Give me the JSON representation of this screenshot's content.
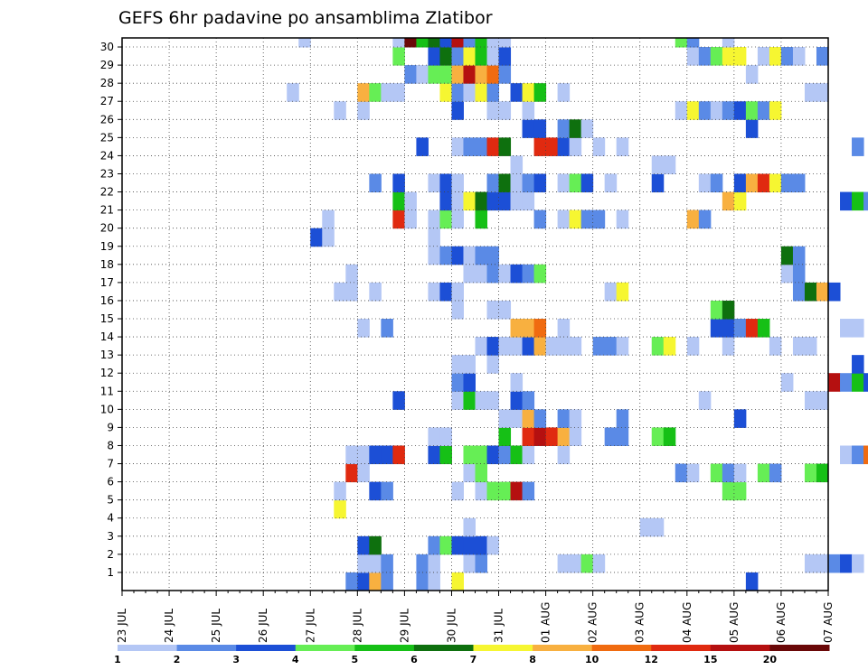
{
  "colors": {
    "c1": "#b4c7f5",
    "c2": "#5a8ae6",
    "c3": "#1c4fd6",
    "c4": "#66ee55",
    "c5": "#16c016",
    "c6": "#0e700e",
    "c7": "#f6f631",
    "c8": "#f8b040",
    "c9": "#f06b10",
    "c10": "#e02a10",
    "c11": "#b51010",
    "c12": "#6a0808"
  },
  "chart_data": {
    "type": "heatmap",
    "title": "GEFS 6hr padavine po ansamblima Zlatibor",
    "x_tick_labels": [
      "23 JUL",
      "24 JUL",
      "25 JUL",
      "26 JUL",
      "27 JUL",
      "28 JUL",
      "29 JUL",
      "30 JUL",
      "31 JUL",
      "01 AUG",
      "02 AUG",
      "03 AUG",
      "04 AUG",
      "05 AUG",
      "06 AUG",
      "07 AUG"
    ],
    "y_tick_labels": [
      "1",
      "2",
      "3",
      "4",
      "5",
      "6",
      "7",
      "8",
      "9",
      "10",
      "11",
      "12",
      "13",
      "14",
      "15",
      "16",
      "17",
      "18",
      "19",
      "20",
      "21",
      "22",
      "23",
      "24",
      "25",
      "26",
      "27",
      "28",
      "29",
      "30"
    ],
    "x_steps_per_day": 4,
    "y_members": 30,
    "legend": {
      "labels": [
        "1",
        "2",
        "3",
        "4",
        "5",
        "6",
        "7",
        "8",
        "10",
        "12",
        "15",
        "20"
      ],
      "levels": [
        "c1",
        "c2",
        "c3",
        "c4",
        "c5",
        "c6",
        "c7",
        "c8",
        "c9",
        "c10",
        "c11",
        "c12"
      ]
    },
    "cells": {
      "30": [
        [
          15,
          "c1"
        ],
        [
          23,
          "c1"
        ],
        [
          24,
          "c12"
        ],
        [
          25,
          "c5"
        ],
        [
          26,
          "c6"
        ],
        [
          27,
          "c3"
        ],
        [
          28,
          "c11"
        ],
        [
          29,
          "c2"
        ],
        [
          30,
          "c5"
        ],
        [
          31,
          "c1"
        ],
        [
          32,
          "c1"
        ],
        [
          47,
          "c4"
        ],
        [
          48,
          "c2"
        ],
        [
          51,
          "c1"
        ]
      ],
      "29": [
        [
          23,
          "c4"
        ],
        [
          26,
          "c3"
        ],
        [
          27,
          "c6"
        ],
        [
          28,
          "c2"
        ],
        [
          29,
          "c7"
        ],
        [
          30,
          "c5"
        ],
        [
          31,
          "c1"
        ],
        [
          32,
          "c3"
        ],
        [
          48,
          "c1"
        ],
        [
          49,
          "c2"
        ],
        [
          50,
          "c4"
        ],
        [
          51,
          "c7"
        ],
        [
          52,
          "c7"
        ],
        [
          54,
          "c1"
        ],
        [
          55,
          "c7"
        ],
        [
          56,
          "c2"
        ],
        [
          57,
          "c1"
        ],
        [
          59,
          "c2"
        ]
      ],
      "28": [
        [
          24,
          "c2"
        ],
        [
          25,
          "c1"
        ],
        [
          26,
          "c4"
        ],
        [
          27,
          "c4"
        ],
        [
          28,
          "c8"
        ],
        [
          29,
          "c11"
        ],
        [
          30,
          "c8"
        ],
        [
          31,
          "c9"
        ],
        [
          32,
          "c2"
        ],
        [
          53,
          "c1"
        ]
      ],
      "27": [
        [
          14,
          "c1"
        ],
        [
          20,
          "c8"
        ],
        [
          21,
          "c4"
        ],
        [
          22,
          "c1"
        ],
        [
          23,
          "c1"
        ],
        [
          27,
          "c7"
        ],
        [
          28,
          "c2"
        ],
        [
          29,
          "c1"
        ],
        [
          30,
          "c7"
        ],
        [
          31,
          "c2"
        ],
        [
          33,
          "c3"
        ],
        [
          34,
          "c7"
        ],
        [
          35,
          "c5"
        ],
        [
          37,
          "c1"
        ],
        [
          58,
          "c1"
        ],
        [
          59,
          "c1"
        ]
      ],
      "26": [
        [
          18,
          "c1"
        ],
        [
          20,
          "c1"
        ],
        [
          28,
          "c3"
        ],
        [
          31,
          "c1"
        ],
        [
          32,
          "c1"
        ],
        [
          34,
          "c1"
        ],
        [
          47,
          "c1"
        ],
        [
          48,
          "c7"
        ],
        [
          49,
          "c2"
        ],
        [
          50,
          "c1"
        ],
        [
          51,
          "c2"
        ],
        [
          52,
          "c3"
        ],
        [
          53,
          "c4"
        ],
        [
          54,
          "c2"
        ],
        [
          55,
          "c7"
        ]
      ],
      "25": [
        [
          34,
          "c3"
        ],
        [
          35,
          "c3"
        ],
        [
          37,
          "c2"
        ],
        [
          38,
          "c6"
        ],
        [
          39,
          "c1"
        ],
        [
          53,
          "c3"
        ]
      ],
      "24": [
        [
          25,
          "c3"
        ],
        [
          28,
          "c1"
        ],
        [
          29,
          "c2"
        ],
        [
          30,
          "c2"
        ],
        [
          31,
          "c10"
        ],
        [
          32,
          "c6"
        ],
        [
          35,
          "c10"
        ],
        [
          36,
          "c10"
        ],
        [
          37,
          "c3"
        ],
        [
          38,
          "c1"
        ],
        [
          40,
          "c1"
        ],
        [
          42,
          "c1"
        ],
        [
          62,
          "c2"
        ]
      ],
      "23": [
        [
          33,
          "c1"
        ],
        [
          45,
          "c1"
        ],
        [
          46,
          "c1"
        ]
      ],
      "22": [
        [
          21,
          "c2"
        ],
        [
          23,
          "c3"
        ],
        [
          26,
          "c1"
        ],
        [
          27,
          "c3"
        ],
        [
          28,
          "c1"
        ],
        [
          31,
          "c2"
        ],
        [
          32,
          "c6"
        ],
        [
          33,
          "c1"
        ],
        [
          34,
          "c2"
        ],
        [
          35,
          "c3"
        ],
        [
          37,
          "c1"
        ],
        [
          38,
          "c4"
        ],
        [
          39,
          "c3"
        ],
        [
          41,
          "c1"
        ],
        [
          45,
          "c3"
        ],
        [
          49,
          "c1"
        ],
        [
          50,
          "c2"
        ],
        [
          52,
          "c3"
        ],
        [
          53,
          "c8"
        ],
        [
          54,
          "c10"
        ],
        [
          55,
          "c7"
        ],
        [
          56,
          "c2"
        ],
        [
          57,
          "c2"
        ]
      ],
      "21": [
        [
          23,
          "c5"
        ],
        [
          24,
          "c1"
        ],
        [
          27,
          "c3"
        ],
        [
          28,
          "c1"
        ],
        [
          29,
          "c7"
        ],
        [
          30,
          "c6"
        ],
        [
          31,
          "c3"
        ],
        [
          32,
          "c3"
        ],
        [
          33,
          "c1"
        ],
        [
          34,
          "c1"
        ],
        [
          51,
          "c8"
        ],
        [
          52,
          "c7"
        ],
        [
          61,
          "c3"
        ],
        [
          62,
          "c5"
        ],
        [
          63,
          "c2"
        ]
      ],
      "20": [
        [
          17,
          "c1"
        ],
        [
          23,
          "c10"
        ],
        [
          24,
          "c1"
        ],
        [
          26,
          "c1"
        ],
        [
          27,
          "c4"
        ],
        [
          28,
          "c1"
        ],
        [
          30,
          "c5"
        ],
        [
          35,
          "c2"
        ],
        [
          37,
          "c1"
        ],
        [
          38,
          "c7"
        ],
        [
          39,
          "c2"
        ],
        [
          40,
          "c2"
        ],
        [
          42,
          "c1"
        ],
        [
          48,
          "c8"
        ],
        [
          49,
          "c2"
        ]
      ],
      "19": [
        [
          16,
          "c3"
        ],
        [
          17,
          "c1"
        ],
        [
          26,
          "c1"
        ]
      ],
      "18": [
        [
          26,
          "c1"
        ],
        [
          27,
          "c2"
        ],
        [
          28,
          "c3"
        ],
        [
          29,
          "c1"
        ],
        [
          30,
          "c2"
        ],
        [
          31,
          "c2"
        ],
        [
          56,
          "c6"
        ],
        [
          57,
          "c2"
        ]
      ],
      "17": [
        [
          19,
          "c1"
        ],
        [
          29,
          "c1"
        ],
        [
          30,
          "c1"
        ],
        [
          31,
          "c2"
        ],
        [
          32,
          "c1"
        ],
        [
          33,
          "c3"
        ],
        [
          34,
          "c2"
        ],
        [
          35,
          "c4"
        ],
        [
          56,
          "c1"
        ],
        [
          57,
          "c2"
        ]
      ],
      "16": [
        [
          18,
          "c1"
        ],
        [
          19,
          "c1"
        ],
        [
          21,
          "c1"
        ],
        [
          26,
          "c1"
        ],
        [
          27,
          "c3"
        ],
        [
          28,
          "c1"
        ],
        [
          41,
          "c1"
        ],
        [
          42,
          "c7"
        ],
        [
          57,
          "c2"
        ],
        [
          58,
          "c6"
        ],
        [
          59,
          "c8"
        ],
        [
          60,
          "c3"
        ]
      ],
      "15": [
        [
          28,
          "c1"
        ],
        [
          31,
          "c1"
        ],
        [
          32,
          "c1"
        ],
        [
          50,
          "c4"
        ],
        [
          51,
          "c6"
        ]
      ],
      "14": [
        [
          20,
          "c1"
        ],
        [
          22,
          "c2"
        ],
        [
          33,
          "c8"
        ],
        [
          34,
          "c8"
        ],
        [
          35,
          "c9"
        ],
        [
          37,
          "c1"
        ],
        [
          50,
          "c3"
        ],
        [
          51,
          "c3"
        ],
        [
          52,
          "c2"
        ],
        [
          53,
          "c10"
        ],
        [
          54,
          "c5"
        ],
        [
          61,
          "c1"
        ],
        [
          62,
          "c1"
        ]
      ],
      "13": [
        [
          30,
          "c1"
        ],
        [
          31,
          "c3"
        ],
        [
          32,
          "c1"
        ],
        [
          33,
          "c1"
        ],
        [
          34,
          "c3"
        ],
        [
          35,
          "c8"
        ],
        [
          36,
          "c1"
        ],
        [
          37,
          "c1"
        ],
        [
          38,
          "c1"
        ],
        [
          40,
          "c2"
        ],
        [
          41,
          "c2"
        ],
        [
          42,
          "c1"
        ],
        [
          45,
          "c4"
        ],
        [
          46,
          "c7"
        ],
        [
          48,
          "c1"
        ],
        [
          51,
          "c1"
        ],
        [
          55,
          "c1"
        ],
        [
          57,
          "c1"
        ],
        [
          58,
          "c1"
        ]
      ],
      "12": [
        [
          28,
          "c1"
        ],
        [
          29,
          "c1"
        ],
        [
          31,
          "c1"
        ],
        [
          62,
          "c3"
        ]
      ],
      "11": [
        [
          28,
          "c2"
        ],
        [
          29,
          "c3"
        ],
        [
          33,
          "c1"
        ],
        [
          56,
          "c1"
        ],
        [
          60,
          "c11"
        ],
        [
          61,
          "c2"
        ],
        [
          62,
          "c5"
        ],
        [
          63,
          "c3"
        ]
      ],
      "10": [
        [
          23,
          "c3"
        ],
        [
          28,
          "c1"
        ],
        [
          29,
          "c5"
        ],
        [
          30,
          "c1"
        ],
        [
          31,
          "c1"
        ],
        [
          33,
          "c3"
        ],
        [
          34,
          "c2"
        ],
        [
          49,
          "c1"
        ],
        [
          58,
          "c1"
        ],
        [
          59,
          "c1"
        ]
      ],
      "9": [
        [
          32,
          "c1"
        ],
        [
          33,
          "c1"
        ],
        [
          34,
          "c8"
        ],
        [
          35,
          "c2"
        ],
        [
          37,
          "c2"
        ],
        [
          38,
          "c1"
        ],
        [
          42,
          "c2"
        ],
        [
          52,
          "c3"
        ]
      ],
      "8": [
        [
          26,
          "c1"
        ],
        [
          27,
          "c1"
        ],
        [
          32,
          "c5"
        ],
        [
          34,
          "c10"
        ],
        [
          35,
          "c11"
        ],
        [
          36,
          "c10"
        ],
        [
          37,
          "c8"
        ],
        [
          38,
          "c1"
        ],
        [
          41,
          "c2"
        ],
        [
          42,
          "c2"
        ],
        [
          45,
          "c4"
        ],
        [
          46,
          "c5"
        ]
      ],
      "7": [
        [
          19,
          "c1"
        ],
        [
          20,
          "c1"
        ],
        [
          21,
          "c3"
        ],
        [
          22,
          "c3"
        ],
        [
          23,
          "c10"
        ],
        [
          26,
          "c3"
        ],
        [
          27,
          "c5"
        ],
        [
          29,
          "c4"
        ],
        [
          30,
          "c4"
        ],
        [
          31,
          "c3"
        ],
        [
          32,
          "c2"
        ],
        [
          33,
          "c5"
        ],
        [
          34,
          "c1"
        ],
        [
          37,
          "c1"
        ],
        [
          61,
          "c1"
        ],
        [
          62,
          "c2"
        ],
        [
          63,
          "c9"
        ]
      ],
      "6": [
        [
          19,
          "c10"
        ],
        [
          20,
          "c1"
        ],
        [
          29,
          "c1"
        ],
        [
          30,
          "c4"
        ],
        [
          47,
          "c2"
        ],
        [
          48,
          "c1"
        ],
        [
          50,
          "c4"
        ],
        [
          51,
          "c2"
        ],
        [
          52,
          "c1"
        ],
        [
          54,
          "c4"
        ],
        [
          55,
          "c2"
        ],
        [
          58,
          "c4"
        ],
        [
          59,
          "c5"
        ]
      ],
      "5": [
        [
          18,
          "c1"
        ],
        [
          21,
          "c3"
        ],
        [
          22,
          "c2"
        ],
        [
          28,
          "c1"
        ],
        [
          30,
          "c1"
        ],
        [
          31,
          "c4"
        ],
        [
          32,
          "c4"
        ],
        [
          33,
          "c11"
        ],
        [
          34,
          "c2"
        ],
        [
          51,
          "c4"
        ],
        [
          52,
          "c4"
        ]
      ],
      "4": [
        [
          18,
          "c7"
        ]
      ],
      "3": [
        [
          29,
          "c1"
        ],
        [
          44,
          "c1"
        ],
        [
          45,
          "c1"
        ]
      ],
      "2": [
        [
          20,
          "c3"
        ],
        [
          21,
          "c6"
        ],
        [
          26,
          "c2"
        ],
        [
          27,
          "c4"
        ],
        [
          28,
          "c3"
        ],
        [
          29,
          "c3"
        ],
        [
          30,
          "c3"
        ],
        [
          31,
          "c1"
        ]
      ],
      "1": [
        [
          20,
          "c1"
        ],
        [
          21,
          "c1"
        ],
        [
          22,
          "c2"
        ],
        [
          25,
          "c2"
        ],
        [
          26,
          "c1"
        ],
        [
          29,
          "c1"
        ],
        [
          30,
          "c2"
        ],
        [
          37,
          "c1"
        ],
        [
          38,
          "c1"
        ],
        [
          39,
          "c4"
        ],
        [
          40,
          "c1"
        ],
        [
          58,
          "c1"
        ],
        [
          59,
          "c1"
        ],
        [
          60,
          "c2"
        ],
        [
          61,
          "c3"
        ],
        [
          62,
          "c1"
        ]
      ],
      "0": [
        [
          19,
          "c2"
        ],
        [
          20,
          "c3"
        ],
        [
          21,
          "c8"
        ],
        [
          22,
          "c2"
        ],
        [
          25,
          "c2"
        ],
        [
          26,
          "c1"
        ],
        [
          28,
          "c7"
        ],
        [
          53,
          "c3"
        ]
      ]
    }
  }
}
